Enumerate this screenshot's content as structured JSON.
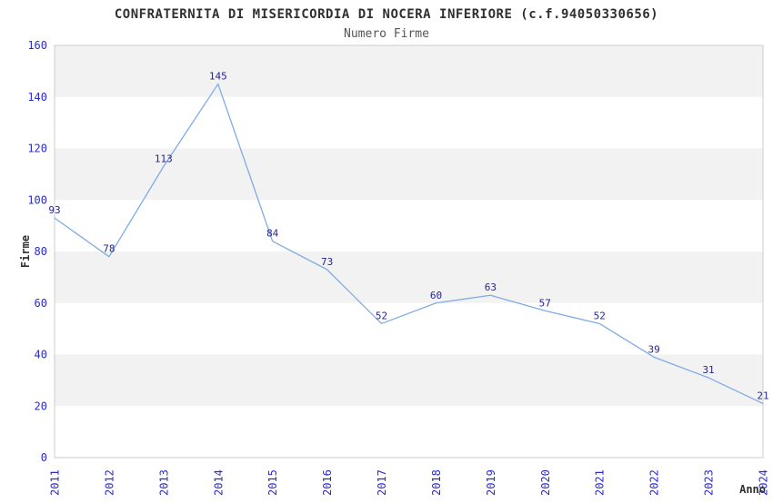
{
  "chart_data": {
    "type": "line",
    "title": "CONFRATERNITA DI MISERICORDIA DI NOCERA INFERIORE (c.f.94050330656)",
    "subtitle": "Numero Firme",
    "xlabel": "Anno",
    "ylabel": "Firme",
    "categories": [
      "2011",
      "2012",
      "2013",
      "2014",
      "2015",
      "2016",
      "2017",
      "2018",
      "2019",
      "2020",
      "2021",
      "2022",
      "2023",
      "2024"
    ],
    "series": [
      {
        "name": "Numero Firme",
        "values": [
          93,
          78,
          113,
          145,
          84,
          73,
          52,
          60,
          63,
          57,
          52,
          39,
          31,
          21
        ]
      }
    ],
    "ylim": [
      0,
      160
    ],
    "y_ticks": [
      0,
      20,
      40,
      60,
      80,
      100,
      120,
      140,
      160
    ],
    "grid": "alternating-horizontal-bands",
    "legend_position": "none",
    "x_tick_rotation_deg": -90,
    "colors": {
      "line": "#7FACE3",
      "data_label": "#26268C",
      "tick_label": "#2B2BCC",
      "band_gray": "#F2F2F2",
      "band_white": "#FFFFFF",
      "plot_border": "#CCCCCC",
      "title": "#303030",
      "subtitle": "#555555",
      "axis_title": "#303030",
      "background": "#FFFFFF"
    }
  }
}
